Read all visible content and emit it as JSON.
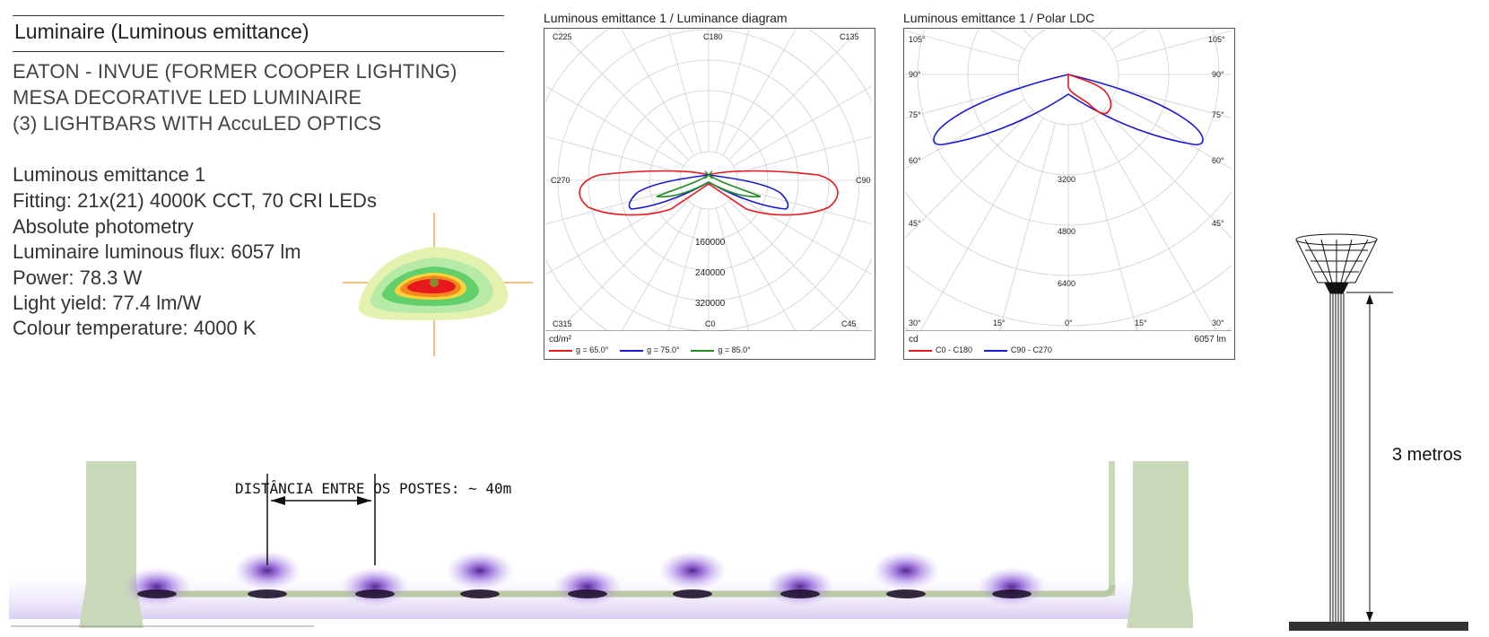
{
  "luminaire": {
    "title": "Luminaire (Luminous emittance)",
    "manufacturer_lines": [
      "EATON - INVUE (FORMER COOPER LIGHTING)",
      "MESA DECORATIVE LED LUMINAIRE",
      "(3) LIGHTBARS WITH AccuLED OPTICS"
    ],
    "specs": [
      "Luminous emittance 1",
      "Fitting: 21x(21) 4000K CCT, 70 CRI LEDs",
      "Absolute photometry",
      "Luminaire luminous flux: 6057 lm",
      "Power: 78.3 W",
      "Light yield: 77.4 lm/W",
      "Colour temperature: 4000 K"
    ]
  },
  "colors": {
    "red": "#e8191d",
    "blue": "#1a1ad6",
    "green": "#1f8c1f",
    "grid": "#cfcfcf",
    "pole": "#c9d8b8",
    "pool": "#9a6fe0"
  },
  "chart_data": [
    {
      "type": "polar",
      "title": "Luminous emittance 1 / Luminance diagram",
      "unit_label": "cd/m²",
      "angle_labels": [
        "C225",
        "C180",
        "C135",
        "C270",
        "C90",
        "C315",
        "C0",
        "C45"
      ],
      "radial_labels": [
        "160000",
        "240000",
        "320000"
      ],
      "series": [
        {
          "name": "g = 65.0°",
          "color": "#e8191d"
        },
        {
          "name": "g = 75.0°",
          "color": "#1a1ad6"
        },
        {
          "name": "g = 85.0°",
          "color": "#1f8c1f"
        }
      ]
    },
    {
      "type": "polar",
      "title": "Luminous emittance 1 / Polar LDC",
      "unit_label": "cd",
      "flux_label": "6057 lm",
      "angle_labels_left": [
        "105°",
        "90°",
        "75°",
        "60°",
        "45°",
        "30°",
        "15°"
      ],
      "angle_labels_right": [
        "105°",
        "90°",
        "75°",
        "60°",
        "45°",
        "15°",
        "30°"
      ],
      "bottom_center_label": "0°",
      "radial_labels": [
        "3200",
        "4800",
        "6400"
      ],
      "series": [
        {
          "name": "C0 - C180",
          "color": "#e8191d"
        },
        {
          "name": "C90 - C270",
          "color": "#1a1ad6"
        }
      ]
    }
  ],
  "annotations": {
    "distance": "DISTÂNCIA ENTRE OS POSTES: ~ 40m",
    "height": "3 metros"
  }
}
